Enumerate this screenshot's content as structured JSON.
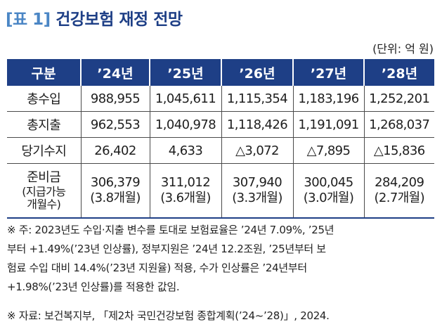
{
  "title_prefix": "[표 1]",
  "title": "건강보험 재정 전망",
  "unit": "(단위: 억 원)",
  "headers": [
    "구분",
    "’24년",
    "’25년",
    "’26년",
    "’27년",
    "’28년"
  ],
  "rows": {
    "revenue": {
      "label": "총수입",
      "values": [
        "988,955",
        "1,045,611",
        "1,115,354",
        "1,183,196",
        "1,252,201"
      ]
    },
    "expenditure": {
      "label": "총지출",
      "values": [
        "962,553",
        "1,040,978",
        "1,118,426",
        "1,191,091",
        "1,268,037"
      ]
    },
    "balance": {
      "label": "당기수지",
      "values": [
        "26,402",
        "4,633",
        "△3,072",
        "△7,895",
        "△15,836"
      ]
    },
    "reserve": {
      "label_main": "준비금",
      "label_sub1": "(지급가능",
      "label_sub2": "개월수)",
      "values": [
        "306,379",
        "311,012",
        "307,940",
        "300,045",
        "284,209"
      ],
      "months": [
        "(3.8개월)",
        "(3.6개월)",
        "(3.3개월)",
        "(3.0개월)",
        "(2.7개월)"
      ]
    }
  },
  "note_label": "※ 주:",
  "note_lines": [
    "2023년도 수입·지출 변수를 토대로 보험료율은 ’24년 7.09%, ’25년",
    "부터 +1.49%(’23년 인상률), 정부지원은 ’24년 12.2조원, ’25년부터 보",
    "험료 수입 대비 14.4%(’23년 지원율) 적용, 수가 인상률은 ’24년부터",
    "+1.98%(’23년 인상률)를 적용한 값임."
  ],
  "source_label": "※ 자료:",
  "source_text": "보건복지부, 「제2차 국민건강보험 종합계획(’24~’28)」, 2024."
}
